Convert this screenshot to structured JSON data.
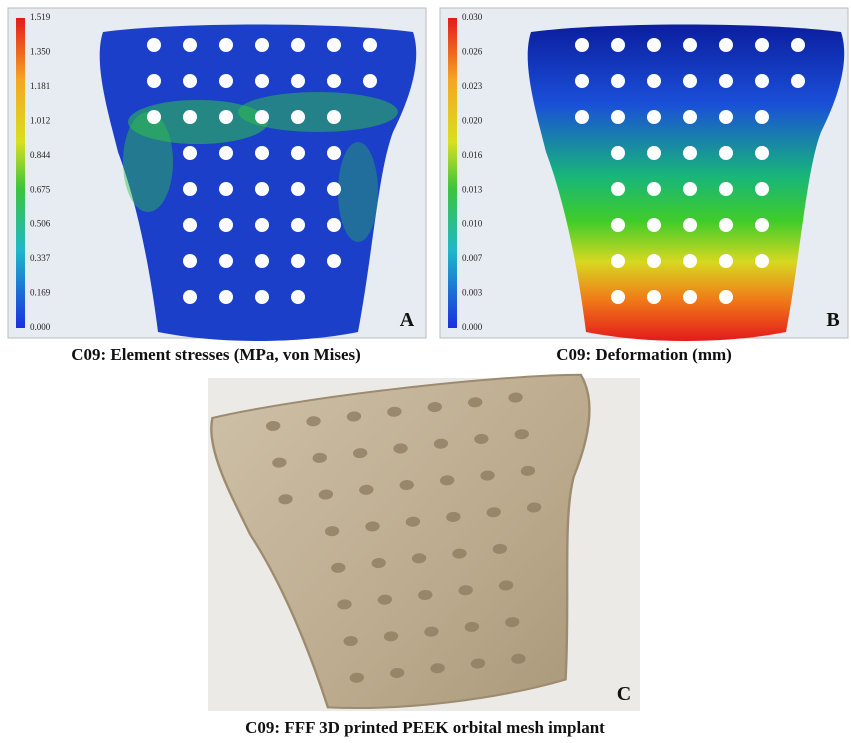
{
  "panels": [
    {
      "letter": "A",
      "caption": "C09: Element stresses (MPa, von Mises)",
      "colorbar_ticks": [
        "1.519",
        "1.350",
        "1.181",
        "1.012",
        "0.844",
        "0.675",
        "0.506",
        "0.337",
        "0.169",
        "0.000"
      ]
    },
    {
      "letter": "B",
      "caption": "C09: Deformation (mm)",
      "colorbar_ticks": [
        "0.030",
        "0.026",
        "0.023",
        "0.020",
        "0.016",
        "0.013",
        "0.010",
        "0.007",
        "0.003",
        "0.000"
      ]
    },
    {
      "letter": "C",
      "caption": "C09: FFF 3D printed PEEK orbital mesh implant"
    }
  ]
}
